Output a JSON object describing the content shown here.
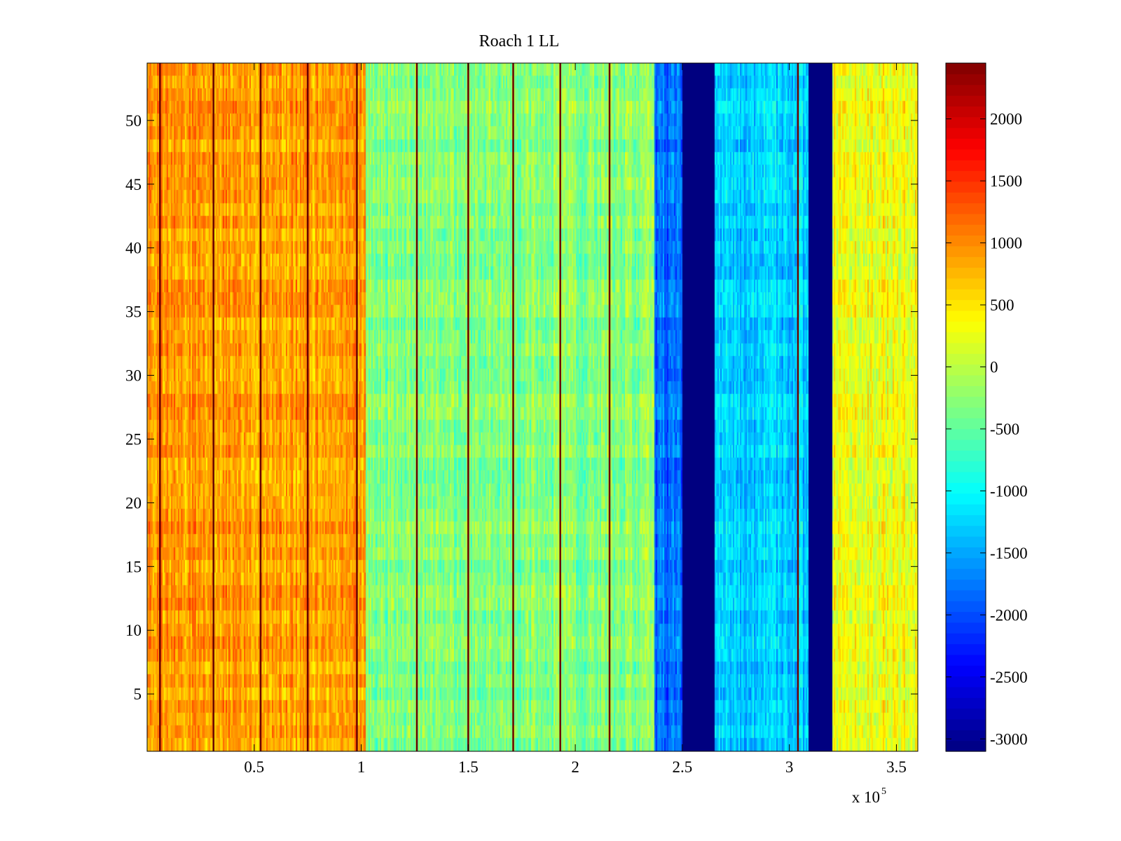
{
  "chart_data": {
    "type": "heatmap",
    "title": "Roach 1 LL",
    "xlabel": "",
    "ylabel": "",
    "x_exponent_label": "x 10",
    "x_exponent_power": "5",
    "xlim": [
      0,
      3.6
    ],
    "ylim": [
      0.5,
      54.5
    ],
    "rows": 54,
    "x_ticks": [
      0.5,
      1,
      1.5,
      2,
      2.5,
      3,
      3.5
    ],
    "x_tick_labels": [
      "0.5",
      "1",
      "1.5",
      "2",
      "2.5",
      "3",
      "3.5"
    ],
    "y_ticks": [
      5,
      10,
      15,
      20,
      25,
      30,
      35,
      40,
      45,
      50
    ],
    "y_tick_labels": [
      "5",
      "10",
      "15",
      "20",
      "25",
      "30",
      "35",
      "40",
      "45",
      "50"
    ],
    "colorbar": {
      "colormap": "jet",
      "clim": [
        -3100,
        2450
      ],
      "ticks": [
        -3000,
        -2500,
        -2000,
        -1500,
        -1000,
        -500,
        0,
        500,
        1000,
        1500,
        2000
      ],
      "tick_labels": [
        "-3000",
        "-2500",
        "-2000",
        "-1500",
        "-1000",
        "-500",
        "0",
        "500",
        "1000",
        "1500",
        "2000"
      ]
    },
    "column_bands": [
      {
        "x_start": 0.0,
        "x_end": 1.02,
        "mean_value": 900,
        "note": "warm orange/red region"
      },
      {
        "x_start": 1.02,
        "x_end": 2.37,
        "mean_value": -300,
        "note": "green/cyan region"
      },
      {
        "x_start": 2.37,
        "x_end": 2.5,
        "mean_value": -1800,
        "note": "blue region"
      },
      {
        "x_start": 2.5,
        "x_end": 2.65,
        "mean_value": -3100,
        "note": "dark blue band"
      },
      {
        "x_start": 2.65,
        "x_end": 3.09,
        "mean_value": -1300,
        "note": "cyan/blue region"
      },
      {
        "x_start": 3.09,
        "x_end": 3.2,
        "mean_value": -3100,
        "note": "dark blue band"
      },
      {
        "x_start": 3.2,
        "x_end": 3.6,
        "mean_value": 300,
        "note": "yellow/orange region"
      }
    ],
    "spike_lines_x": [
      0.06,
      0.31,
      0.53,
      0.75,
      0.98,
      1.26,
      1.5,
      1.71,
      1.93,
      2.16,
      3.04
    ]
  }
}
